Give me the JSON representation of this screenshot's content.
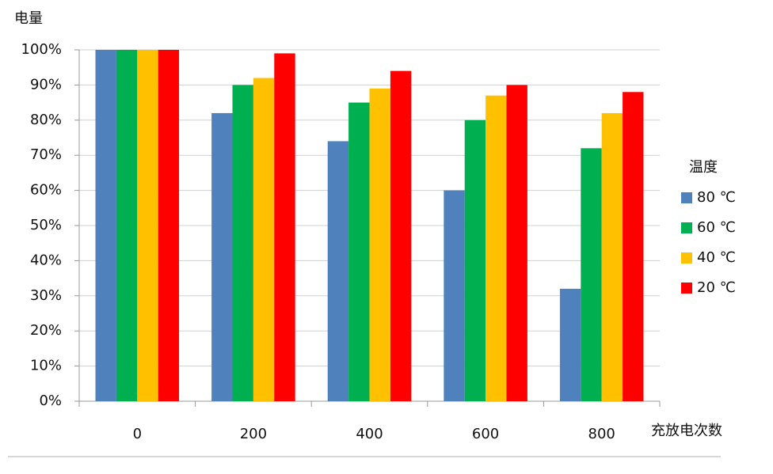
{
  "chart_data": {
    "type": "bar",
    "y_label": "电量",
    "x_label": "充放电次数",
    "legend_title": "温度",
    "categories": [
      "0",
      "200",
      "400",
      "600",
      "800"
    ],
    "series": [
      {
        "name": "80 ℃",
        "color": "#4f81bd",
        "values": [
          100,
          82,
          74,
          60,
          32
        ]
      },
      {
        "name": "60 ℃",
        "color": "#00b050",
        "values": [
          100,
          90,
          85,
          80,
          72
        ]
      },
      {
        "name": "40 ℃",
        "color": "#ffc000",
        "values": [
          100,
          92,
          89,
          87,
          82
        ]
      },
      {
        "name": "20 ℃",
        "color": "#ff0000",
        "values": [
          100,
          99,
          94,
          90,
          88
        ]
      }
    ],
    "ylim": [
      0,
      100
    ],
    "yticks": [
      {
        "value": 0,
        "label": "0%"
      },
      {
        "value": 10,
        "label": "10%"
      },
      {
        "value": 20,
        "label": "20%"
      },
      {
        "value": 30,
        "label": "30%"
      },
      {
        "value": 40,
        "label": "40%"
      },
      {
        "value": 50,
        "label": "50%"
      },
      {
        "value": 60,
        "label": "60%"
      },
      {
        "value": 70,
        "label": "70%"
      },
      {
        "value": 80,
        "label": "80%"
      },
      {
        "value": 90,
        "label": "90%"
      },
      {
        "value": 100,
        "label": "100%"
      }
    ],
    "grid": true,
    "legend": "right"
  }
}
